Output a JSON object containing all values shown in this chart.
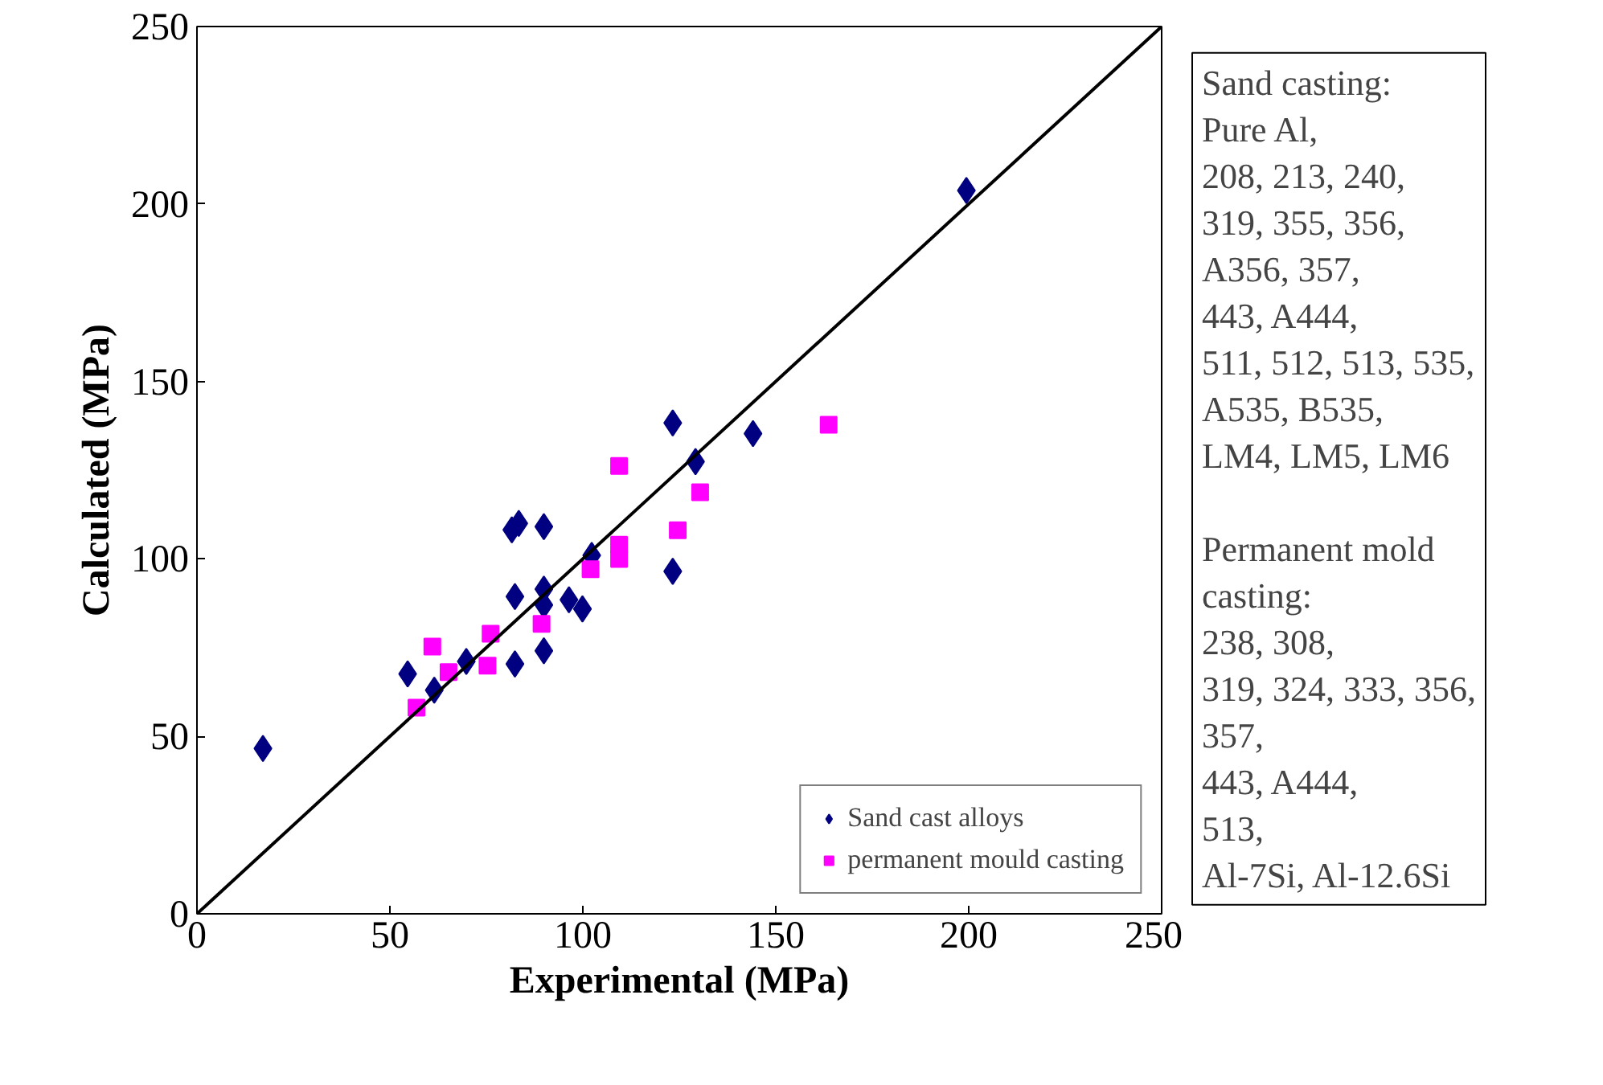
{
  "chart_data": {
    "type": "scatter",
    "xlabel": "Experimental (MPa)",
    "ylabel": "Calculated (MPa)",
    "xlim": [
      0,
      250
    ],
    "ylim": [
      0,
      250
    ],
    "xticks": [
      0,
      50,
      100,
      150,
      200,
      250
    ],
    "yticks": [
      0,
      50,
      100,
      150,
      200,
      250
    ],
    "grid": false,
    "legend": "bottom right",
    "series": [
      {
        "name": "Sand cast alloys",
        "color": "#000080",
        "marker": "diamond",
        "x": [
          17.1,
          54.6,
          61.5,
          69.8,
          81.6,
          83.4,
          89.9,
          82.4,
          89.9,
          89.9,
          96.4,
          99.9,
          82.4,
          89.9,
          102.3,
          123.3,
          129.2,
          123.3,
          144.1,
          199.4
        ],
        "values": [
          46.6,
          67.6,
          63.0,
          71.1,
          108.2,
          110.0,
          109.1,
          89.4,
          91.5,
          87.0,
          88.5,
          85.9,
          70.4,
          74.1,
          101.0,
          138.3,
          127.4,
          96.5,
          135.3,
          203.8
        ]
      },
      {
        "name": "permanent mould casting",
        "color": "#ff00ff",
        "marker": "square",
        "x": [
          56.9,
          61.0,
          65.2,
          76.1,
          75.3,
          89.3,
          102.0,
          109.4,
          109.4,
          109.4,
          124.6,
          130.4,
          163.7
        ],
        "values": [
          58.1,
          75.3,
          68.1,
          78.9,
          69.9,
          81.7,
          97.1,
          126.2,
          104.0,
          100.0,
          108.1,
          118.8,
          137.8
        ]
      },
      {
        "type": "line",
        "color": "#000000",
        "x": [
          0,
          250
        ],
        "values": [
          0,
          250
        ]
      }
    ],
    "annotations": [
      "Sand casting:\nPure Al,\n208, 213, 240,\n319, 355, 356,\nA356, 357,\n443, A444,\n511, 512, 513, 535,\nA535, B535,\nLM4, LM5, LM6\n\nPermanent mold\ncasting:\n238, 308,\n319, 324, 333, 356,\n357,\n443, A444,\n513,\nAl-7Si, Al-12.6Si"
    ]
  }
}
